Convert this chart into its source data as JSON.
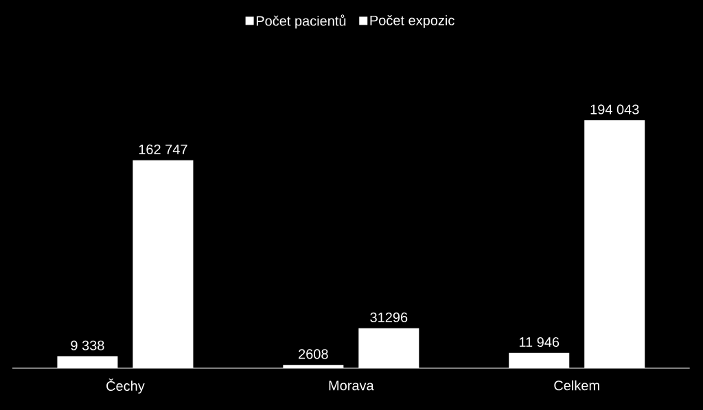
{
  "chart_data": {
    "type": "bar",
    "categories": [
      "Čechy",
      "Morava",
      "Celkem"
    ],
    "series": [
      {
        "name": "Počet pacientů",
        "color": "#ffffff",
        "values": [
          9338,
          2608,
          11946
        ],
        "value_labels": [
          "9 338",
          "2608",
          "11 946"
        ]
      },
      {
        "name": "Počet expozic",
        "color": "#ffffff",
        "values": [
          162747,
          31296,
          194043
        ],
        "value_labels": [
          "162 747",
          "31296",
          "194 043"
        ]
      }
    ],
    "legend": "top"
  }
}
